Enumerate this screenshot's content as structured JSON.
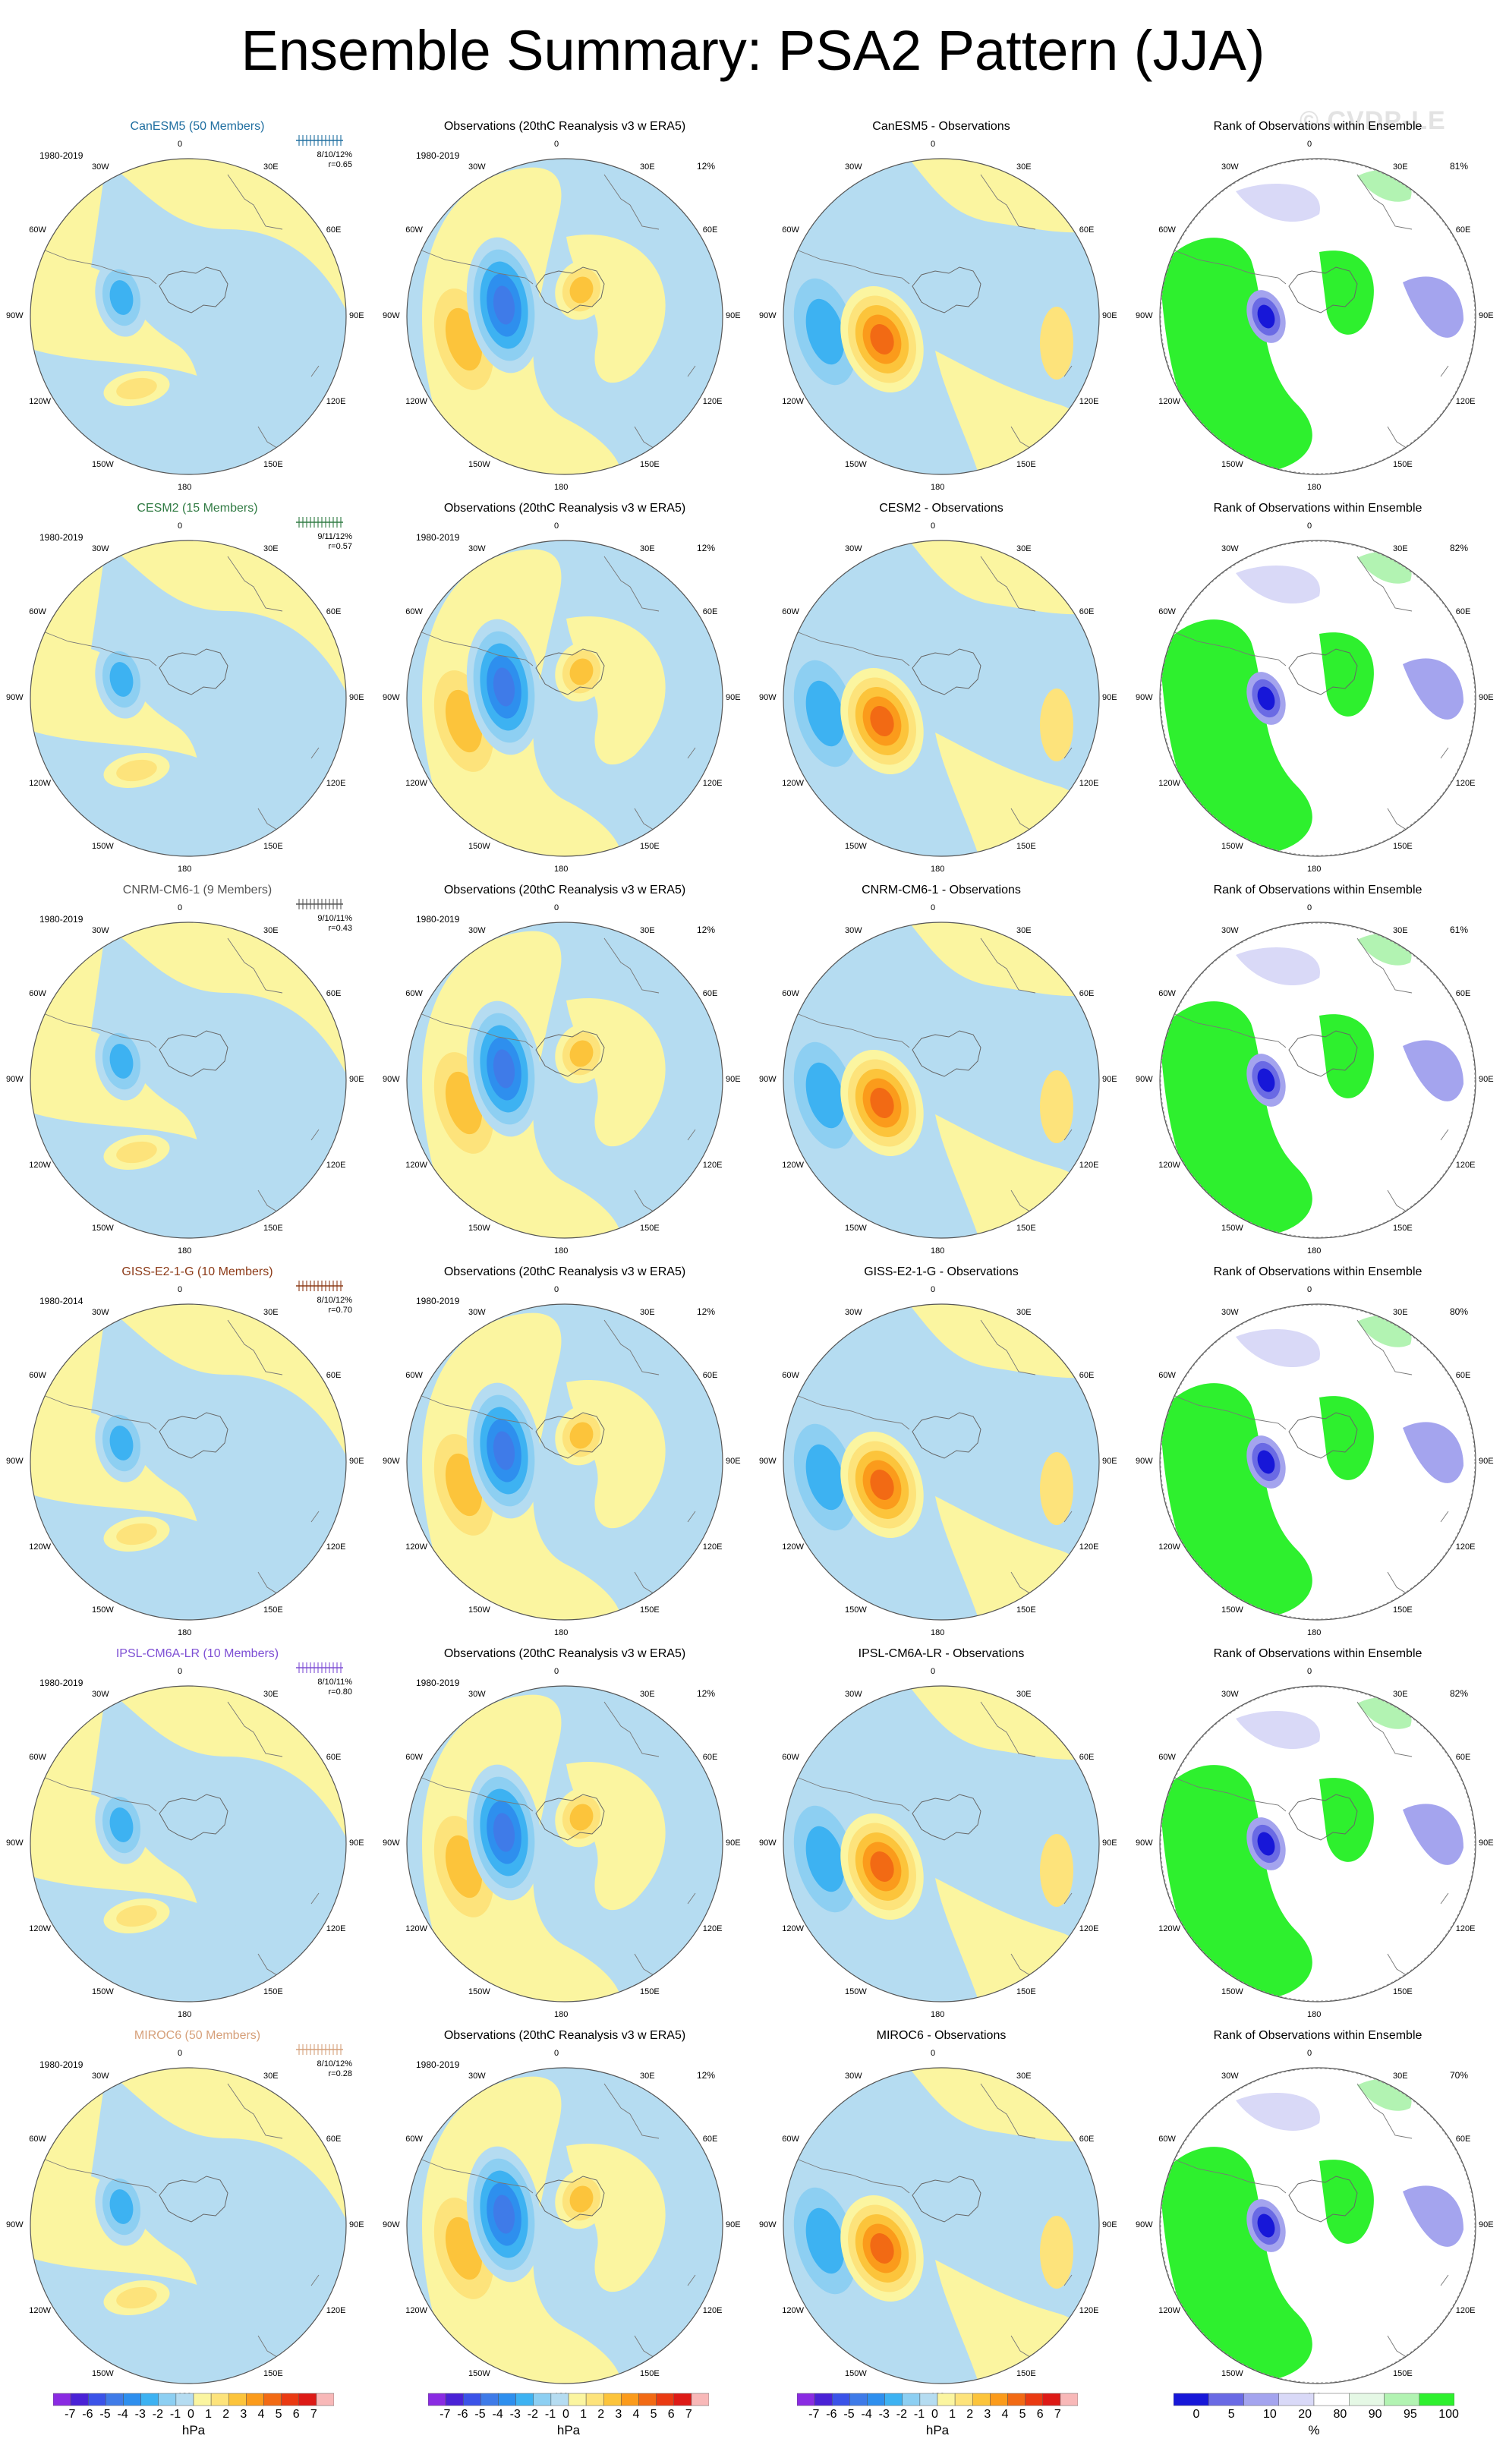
{
  "page": {
    "title": "Ensemble Summary: PSA2 Pattern (JJA)",
    "watermark": "© CVDP-LE"
  },
  "lon_labels": [
    "0",
    "30E",
    "60E",
    "90E",
    "120E",
    "150E",
    "180",
    "150W",
    "120W",
    "90W",
    "60W",
    "30W"
  ],
  "colors": {
    "pressure_levels": [
      "#8a2be2",
      "#4a22d6",
      "#3b53e8",
      "#3f7be8",
      "#2e8fee",
      "#3db2f2",
      "#8dcff2",
      "#b5dcf1",
      "#fbf5a0",
      "#fde37b",
      "#fcc43b",
      "#fb9b1b",
      "#f26a14",
      "#ea3a12",
      "#dd1a16",
      "#f8b8b8"
    ],
    "rank_levels": [
      "#1717d8",
      "#6a6ae4",
      "#a4a4ee",
      "#d9d9f7",
      "#ffffff",
      "#e5f8e5",
      "#b2f3b2",
      "#2ef02e"
    ],
    "model_names": {
      "CanESM5": "#1f6ea0",
      "CESM2": "#2f7a42",
      "CNRM-CM6-1": "#555555",
      "GISS-E2-1-G": "#8c3a17",
      "IPSL-CM6A-LR": "#7e4fd4",
      "MIROC6": "#d6a07a"
    }
  },
  "rows": [
    {
      "model": "CanESM5 (50 Members)",
      "period": "1980-2019",
      "stats_pct": "8/10/12%",
      "stats_r": "r=0.65",
      "obs_title": "Observations (20thC Reanalysis v3 w ERA5)",
      "obs_period": "1980-2019",
      "obs_pct": "12%",
      "diff_title": "CanESM5 - Observations",
      "rank_title": "Rank of Observations within Ensemble",
      "rank_pct": "81%"
    },
    {
      "model": "CESM2 (15 Members)",
      "period": "1980-2019",
      "stats_pct": "9/11/12%",
      "stats_r": "r=0.57",
      "obs_title": "Observations (20thC Reanalysis v3 w ERA5)",
      "obs_period": "1980-2019",
      "obs_pct": "12%",
      "diff_title": "CESM2 - Observations",
      "rank_title": "Rank of Observations within Ensemble",
      "rank_pct": "82%"
    },
    {
      "model": "CNRM-CM6-1 (9 Members)",
      "period": "1980-2019",
      "stats_pct": "9/10/11%",
      "stats_r": "r=0.43",
      "obs_title": "Observations (20thC Reanalysis v3 w ERA5)",
      "obs_period": "1980-2019",
      "obs_pct": "12%",
      "diff_title": "CNRM-CM6-1 - Observations",
      "rank_title": "Rank of Observations within Ensemble",
      "rank_pct": "61%"
    },
    {
      "model": "GISS-E2-1-G (10 Members)",
      "period": "1980-2014",
      "stats_pct": "8/10/12%",
      "stats_r": "r=0.70",
      "obs_title": "Observations (20thC Reanalysis v3 w ERA5)",
      "obs_period": "1980-2019",
      "obs_pct": "12%",
      "diff_title": "GISS-E2-1-G - Observations",
      "rank_title": "Rank of Observations within Ensemble",
      "rank_pct": "80%"
    },
    {
      "model": "IPSL-CM6A-LR (10 Members)",
      "period": "1980-2019",
      "stats_pct": "8/10/11%",
      "stats_r": "r=0.80",
      "obs_title": "Observations (20thC Reanalysis v3 w ERA5)",
      "obs_period": "1980-2019",
      "obs_pct": "12%",
      "diff_title": "IPSL-CM6A-LR - Observations",
      "rank_title": "Rank of Observations within Ensemble",
      "rank_pct": "82%"
    },
    {
      "model": "MIROC6 (50 Members)",
      "period": "1980-2019",
      "stats_pct": "8/10/12%",
      "stats_r": "r=0.28",
      "obs_title": "Observations (20thC Reanalysis v3 w ERA5)",
      "obs_period": "1980-2019",
      "obs_pct": "12%",
      "diff_title": "MIROC6 - Observations",
      "rank_title": "Rank of Observations within Ensemble",
      "rank_pct": "70%"
    }
  ],
  "colorbars": {
    "pressure_ticks": [
      "-7",
      "-6",
      "-5",
      "-4",
      "-3",
      "-2",
      "-1",
      "0",
      "1",
      "2",
      "3",
      "4",
      "5",
      "6",
      "7"
    ],
    "pressure_unit": "hPa",
    "rank_ticks": [
      "0",
      "5",
      "10",
      "20",
      "80",
      "90",
      "95",
      "100"
    ],
    "rank_unit": "%"
  }
}
